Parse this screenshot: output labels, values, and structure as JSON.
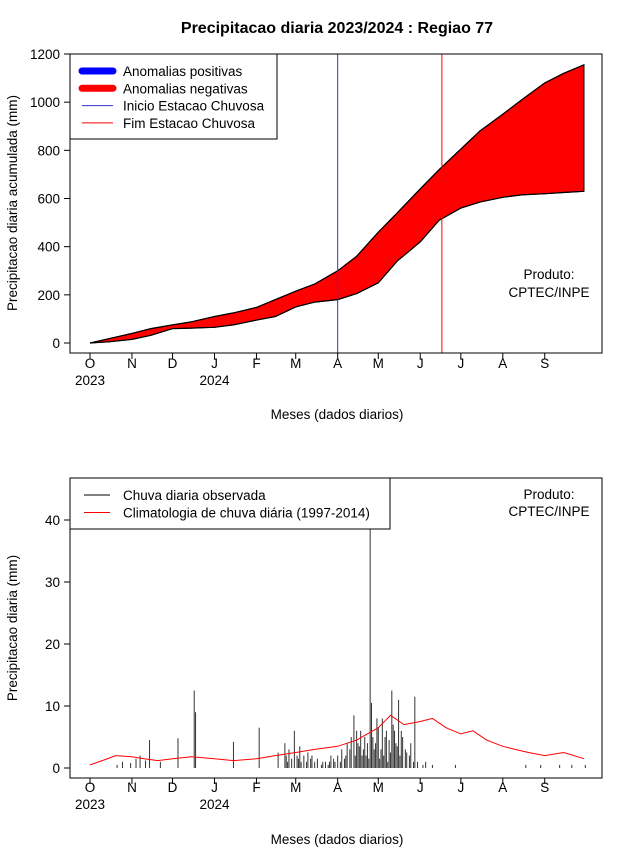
{
  "chart_data": [
    {
      "type": "area",
      "title": "Precipitacao diaria 2023/2024 : Regiao 77",
      "xlabel": "Meses (dados diarios)",
      "ylabel": "Precipitacao diaria acumulada (mm)",
      "ylim": [
        0,
        1200
      ],
      "yticks": [
        0,
        200,
        400,
        600,
        800,
        1000,
        1200
      ],
      "month_ticks": [
        "O",
        "N",
        "D",
        "J",
        "F",
        "M",
        "A",
        "M",
        "J",
        "J",
        "A",
        "S"
      ],
      "year_ticks": [
        "2023",
        "2024"
      ],
      "legend": {
        "position": "top-left",
        "entries": [
          {
            "label": "Anomalias positivas",
            "color": "#0000ff",
            "style": "thick"
          },
          {
            "label": "Anomalias negativas",
            "color": "#ff0000",
            "style": "thick"
          },
          {
            "label": "Inicio Estacao Chuvosa",
            "color": "#3333cc",
            "style": "thin"
          },
          {
            "label": "Fim Estacao Chuvosa",
            "color": "#ff0000",
            "style": "thin"
          }
        ]
      },
      "annotation": [
        "Produto:",
        "CPTEC/INPE"
      ],
      "rainy_season_start": "2024-04-01",
      "rainy_season_end": "2024-06-17",
      "series": [
        {
          "name": "Climatologia acumulada",
          "points": [
            [
              "2023-10-01",
              0
            ],
            [
              "2023-10-15",
              18
            ],
            [
              "2023-11-01",
              40
            ],
            [
              "2023-11-15",
              60
            ],
            [
              "2023-12-01",
              75
            ],
            [
              "2023-12-15",
              88
            ],
            [
              "2024-01-01",
              110
            ],
            [
              "2024-01-15",
              125
            ],
            [
              "2024-02-01",
              148
            ],
            [
              "2024-02-15",
              180
            ],
            [
              "2024-03-01",
              215
            ],
            [
              "2024-03-15",
              245
            ],
            [
              "2024-04-01",
              300
            ],
            [
              "2024-04-15",
              360
            ],
            [
              "2024-05-01",
              460
            ],
            [
              "2024-05-15",
              540
            ],
            [
              "2024-06-01",
              640
            ],
            [
              "2024-06-15",
              720
            ],
            [
              "2024-07-01",
              805
            ],
            [
              "2024-07-15",
              880
            ],
            [
              "2024-08-01",
              950
            ],
            [
              "2024-08-15",
              1010
            ],
            [
              "2024-09-01",
              1080
            ],
            [
              "2024-09-15",
              1120
            ],
            [
              "2024-09-30",
              1155
            ]
          ]
        },
        {
          "name": "Chuva observada acumulada",
          "points": [
            [
              "2023-10-01",
              0
            ],
            [
              "2023-10-15",
              5
            ],
            [
              "2023-11-01",
              15
            ],
            [
              "2023-11-15",
              32
            ],
            [
              "2023-12-01",
              60
            ],
            [
              "2023-12-15",
              62
            ],
            [
              "2024-01-01",
              65
            ],
            [
              "2024-01-15",
              75
            ],
            [
              "2024-02-01",
              95
            ],
            [
              "2024-02-15",
              110
            ],
            [
              "2024-03-01",
              150
            ],
            [
              "2024-03-15",
              170
            ],
            [
              "2024-04-01",
              180
            ],
            [
              "2024-04-15",
              205
            ],
            [
              "2024-05-01",
              250
            ],
            [
              "2024-05-15",
              340
            ],
            [
              "2024-06-01",
              420
            ],
            [
              "2024-06-15",
              510
            ],
            [
              "2024-07-01",
              560
            ],
            [
              "2024-07-15",
              585
            ],
            [
              "2024-08-01",
              605
            ],
            [
              "2024-08-15",
              615
            ],
            [
              "2024-09-01",
              620
            ],
            [
              "2024-09-15",
              625
            ],
            [
              "2024-09-30",
              630
            ]
          ]
        }
      ]
    },
    {
      "type": "bar",
      "xlabel": "Meses (dados diarios)",
      "ylabel": "Precipitacao diaria (mm)",
      "ylim": [
        0,
        45
      ],
      "yticks": [
        0,
        10,
        20,
        30,
        40
      ],
      "month_ticks": [
        "O",
        "N",
        "D",
        "J",
        "F",
        "M",
        "A",
        "M",
        "J",
        "J",
        "A",
        "S"
      ],
      "year_ticks": [
        "2023",
        "2024"
      ],
      "legend": {
        "position": "top-left",
        "entries": [
          {
            "label": "Chuva diaria observada",
            "color": "#000000"
          },
          {
            "label": "Climatologia de chuva diária (1997-2014)",
            "color": "#ff0000"
          }
        ]
      },
      "annotation": [
        "Produto:",
        "CPTEC/INPE"
      ],
      "series": [
        {
          "name": "Chuva diaria observada",
          "values": [
            0,
            0,
            0,
            0,
            0,
            0,
            0,
            0,
            0,
            0,
            0,
            0,
            0,
            0,
            0,
            0,
            0,
            0,
            0,
            0,
            0.5,
            0,
            0,
            0,
            1.0,
            0,
            0,
            0,
            0,
            0,
            0.8,
            0,
            0,
            0,
            1.5,
            0,
            0,
            2.0,
            0,
            0,
            0,
            1.2,
            0,
            0,
            4.5,
            0,
            0,
            0,
            0,
            0,
            0,
            0,
            1.0,
            0,
            0,
            0,
            0,
            0,
            0,
            0,
            0,
            0,
            0,
            0,
            0,
            4.8,
            0,
            0,
            0,
            0,
            0,
            0,
            0,
            0,
            0,
            0,
            0,
            12.5,
            9.0,
            0,
            0,
            0,
            0,
            0,
            0,
            0,
            0,
            0,
            0,
            0,
            0,
            0,
            0,
            0,
            0,
            0,
            0,
            0,
            0,
            0,
            0,
            0,
            0,
            0,
            0,
            0,
            4.2,
            0,
            0,
            0,
            0,
            0,
            0,
            0,
            0,
            0,
            0,
            0,
            0,
            0,
            0,
            0,
            0,
            0,
            0,
            6.5,
            0,
            0,
            0,
            0,
            0,
            0,
            0,
            0,
            0,
            0,
            0,
            0,
            0,
            2.5,
            0,
            0,
            0,
            0,
            4.0,
            2.0,
            1.0,
            3.0,
            0,
            1.5,
            0,
            6.0,
            0,
            2.0,
            1.5,
            3.5,
            1.0,
            0,
            2.0,
            0,
            1.0,
            2.5,
            0,
            1.5,
            2.0,
            0,
            1.0,
            0,
            1.5,
            0,
            0,
            0.5,
            1.0,
            0,
            1.0,
            0,
            0.5,
            1.0,
            2.0,
            0,
            1.5,
            1.0,
            0,
            2.0,
            0,
            1.0,
            3.0,
            0,
            1.5,
            2.0,
            4.0,
            0,
            3.0,
            5.0,
            0,
            8.5,
            2.0,
            6.0,
            4.0,
            3.5,
            6.0,
            2.0,
            3.0,
            5.0,
            2.0,
            4.0,
            1.5,
            39.0,
            10.5,
            5.0,
            3.0,
            4.0,
            8.0,
            6.5,
            1.5,
            3.0,
            8.0,
            2.0,
            5.0,
            6.0,
            1.0,
            4.5,
            2.5,
            12.5,
            7.0,
            6.0,
            4.0,
            3.5,
            11.0,
            2.0,
            6.0,
            5.0,
            0,
            3.0,
            2.5,
            0,
            2.0,
            4.0,
            0,
            1.0,
            11.5,
            0,
            1.0,
            0,
            0,
            0,
            0.5,
            0,
            1.0,
            0,
            0,
            0,
            0,
            0.5,
            0,
            0,
            0,
            0,
            0,
            0,
            0,
            0,
            0,
            0,
            0,
            0,
            0,
            0,
            0,
            0,
            0.5,
            0,
            0,
            0,
            0,
            0,
            0,
            0,
            0,
            0,
            0,
            0,
            0,
            0,
            0,
            0,
            0,
            0,
            0,
            0,
            0,
            0,
            0,
            0,
            0,
            0,
            0,
            0,
            0,
            0,
            0,
            0,
            0,
            0,
            0,
            0,
            0,
            0,
            0,
            0,
            0,
            0,
            0,
            0,
            0,
            0,
            0,
            0,
            0,
            0,
            0,
            0,
            0.5,
            0,
            0,
            0,
            0,
            0,
            0,
            0,
            0,
            0,
            0,
            0.5,
            0,
            0,
            0,
            0,
            0,
            0,
            0,
            0,
            0,
            0,
            0,
            0,
            0,
            0.5,
            0,
            0,
            0,
            0,
            0,
            0,
            0,
            0,
            0.5,
            0,
            0,
            0,
            0,
            0,
            0,
            0,
            0,
            0,
            0.5
          ]
        },
        {
          "name": "Climatologia de chuva diária (1997-2014)",
          "points": [
            [
              "2023-10-01",
              0.5
            ],
            [
              "2023-10-10",
              1.2
            ],
            [
              "2023-10-20",
              2.0
            ],
            [
              "2023-11-01",
              1.8
            ],
            [
              "2023-11-10",
              1.5
            ],
            [
              "2023-11-20",
              1.2
            ],
            [
              "2023-12-01",
              1.5
            ],
            [
              "2023-12-15",
              1.8
            ],
            [
              "2024-01-01",
              1.5
            ],
            [
              "2024-01-15",
              1.2
            ],
            [
              "2024-02-01",
              1.5
            ],
            [
              "2024-02-15",
              2.0
            ],
            [
              "2024-03-01",
              2.5
            ],
            [
              "2024-03-15",
              3.0
            ],
            [
              "2024-04-01",
              3.5
            ],
            [
              "2024-04-15",
              4.5
            ],
            [
              "2024-05-01",
              6.5
            ],
            [
              "2024-05-10",
              8.5
            ],
            [
              "2024-05-20",
              7.0
            ],
            [
              "2024-06-01",
              7.5
            ],
            [
              "2024-06-10",
              8.0
            ],
            [
              "2024-06-20",
              6.5
            ],
            [
              "2024-07-01",
              5.5
            ],
            [
              "2024-07-10",
              6.0
            ],
            [
              "2024-07-20",
              4.5
            ],
            [
              "2024-08-01",
              3.5
            ],
            [
              "2024-08-10",
              3.0
            ],
            [
              "2024-08-20",
              2.5
            ],
            [
              "2024-09-01",
              2.0
            ],
            [
              "2024-09-15",
              2.5
            ],
            [
              "2024-09-30",
              1.5
            ]
          ]
        }
      ]
    }
  ]
}
